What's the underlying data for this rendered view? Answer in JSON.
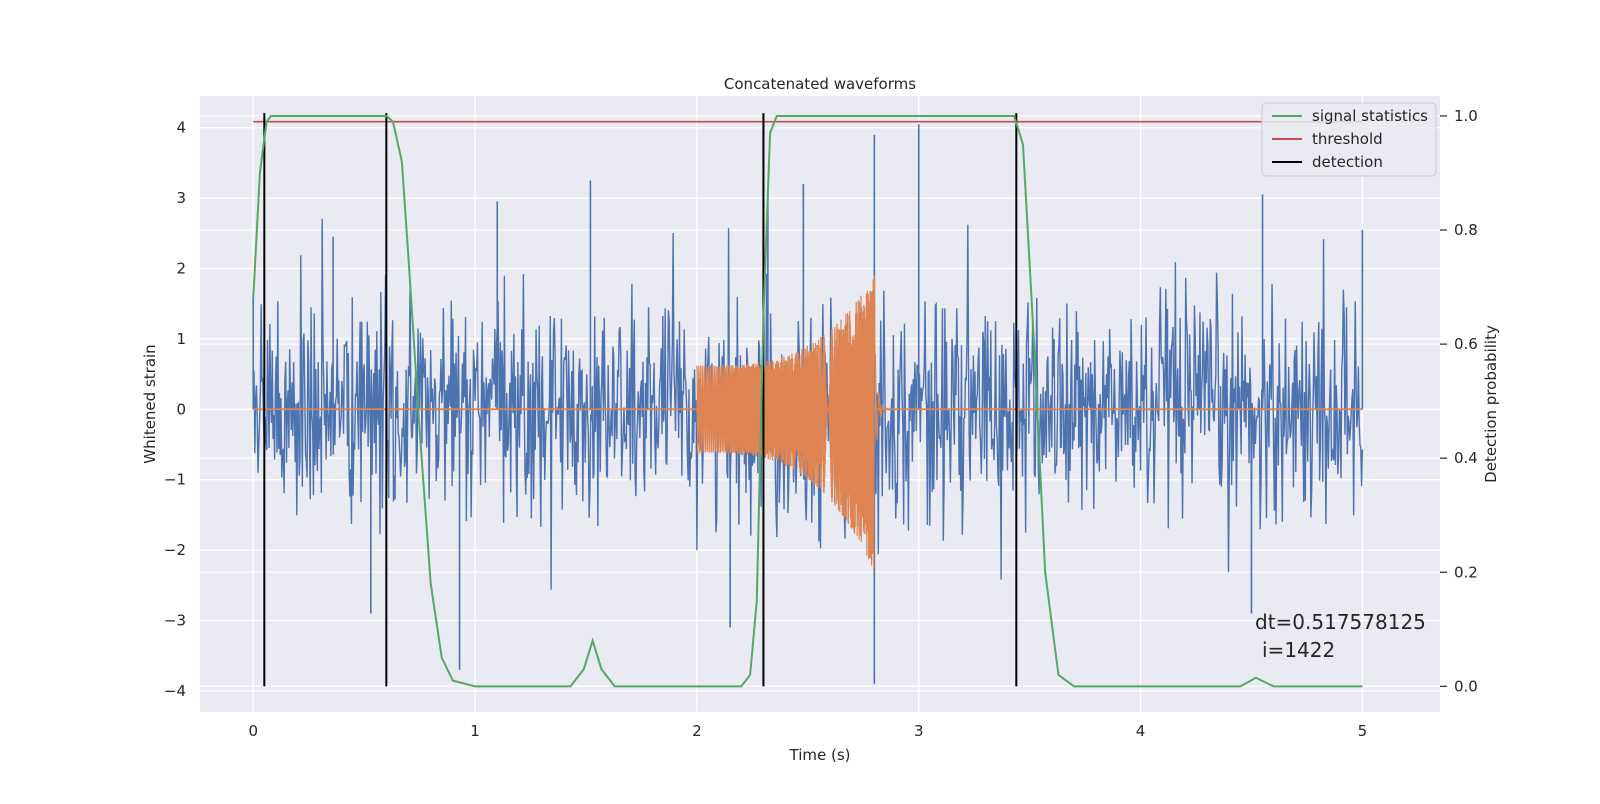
{
  "chart_data": {
    "type": "line",
    "title": "Concatenated waveforms",
    "xlabel": "Time (s)",
    "ylabel": "Whitened strain",
    "y2label": "Detection probability",
    "xlim": [
      -0.24,
      5.35
    ],
    "ylim": [
      -4.3,
      4.45
    ],
    "y2lim": [
      -0.045,
      1.035
    ],
    "xticks": [
      0,
      1,
      2,
      3,
      4,
      5
    ],
    "yticks": [
      -4,
      -3,
      -2,
      -1,
      0,
      1,
      2,
      3,
      4
    ],
    "y2ticks": [
      0.0,
      0.2,
      0.4,
      0.6,
      0.8,
      1.0
    ],
    "grid": true,
    "legend_position": "top-right",
    "colors": {
      "strain": "#4c72b0",
      "injection": "#dd8452",
      "signal_statistics": "#55a868",
      "threshold": "#c44e52",
      "detection": "#000000",
      "axes_bg": "#eaeaf2"
    },
    "series": [
      {
        "key": "strain",
        "description_axis": "left",
        "duration_s": 5.0,
        "typical_amplitude": 1.4,
        "peak_values": [
          {
            "x": 0.0,
            "y": 1.65
          },
          {
            "x": 0.36,
            "y": 2.45
          },
          {
            "x": 0.53,
            "y": -2.9
          },
          {
            "x": 0.93,
            "y": -3.7
          },
          {
            "x": 1.1,
            "y": 2.95
          },
          {
            "x": 1.52,
            "y": 3.25
          },
          {
            "x": 2.15,
            "y": -3.1
          },
          {
            "x": 2.32,
            "y": 3.05
          },
          {
            "x": 2.48,
            "y": 3.2
          },
          {
            "x": 2.8,
            "y": 3.9
          },
          {
            "x": 2.8,
            "y": -3.9
          },
          {
            "x": 3.0,
            "y": 4.05
          },
          {
            "x": 4.5,
            "y": -2.9
          },
          {
            "x": 4.55,
            "y": 3.05
          },
          {
            "x": 5.0,
            "y": 2.55
          }
        ]
      },
      {
        "key": "injection",
        "description_axis": "left",
        "chirp_start_s": 2.0,
        "merger_s": 2.8,
        "ringdown_end_s": 2.82,
        "amplitude_start": 0.62,
        "amplitude_peak_positive": 1.9,
        "amplitude_peak_negative": -2.3
      },
      {
        "key": "signal_statistics",
        "name": "signal statistics",
        "description_axis": "right",
        "x": [
          0.0,
          0.03,
          0.06,
          0.08,
          0.1,
          0.6,
          0.63,
          0.67,
          0.7,
          0.75,
          0.8,
          0.85,
          0.9,
          1.0,
          1.43,
          1.49,
          1.53,
          1.57,
          1.63,
          2.2,
          2.24,
          2.27,
          2.3,
          2.33,
          2.36,
          2.4,
          3.43,
          3.47,
          3.52,
          3.57,
          3.63,
          3.7,
          4.45,
          4.52,
          4.6,
          4.7,
          5.0
        ],
        "y": [
          0.68,
          0.9,
          0.99,
          1.0,
          1.0,
          1.0,
          0.99,
          0.92,
          0.75,
          0.45,
          0.18,
          0.05,
          0.01,
          0.0,
          0.0,
          0.03,
          0.08,
          0.03,
          0.0,
          0.0,
          0.02,
          0.15,
          0.65,
          0.97,
          1.0,
          1.0,
          1.0,
          0.95,
          0.6,
          0.2,
          0.02,
          0.0,
          0.0,
          0.015,
          0.0,
          0.0,
          0.0
        ]
      },
      {
        "key": "threshold",
        "name": "threshold",
        "description_axis": "right",
        "x": [
          0,
          5
        ],
        "y": [
          0.99,
          0.99
        ]
      },
      {
        "key": "detection",
        "name": "detection",
        "description_axis": "right",
        "x": [
          0.05,
          0.6,
          2.3,
          3.44
        ],
        "y_range": [
          0,
          1
        ]
      }
    ],
    "annotation": {
      "line1": "dt=0.517578125",
      "line2": "i=1422"
    }
  }
}
